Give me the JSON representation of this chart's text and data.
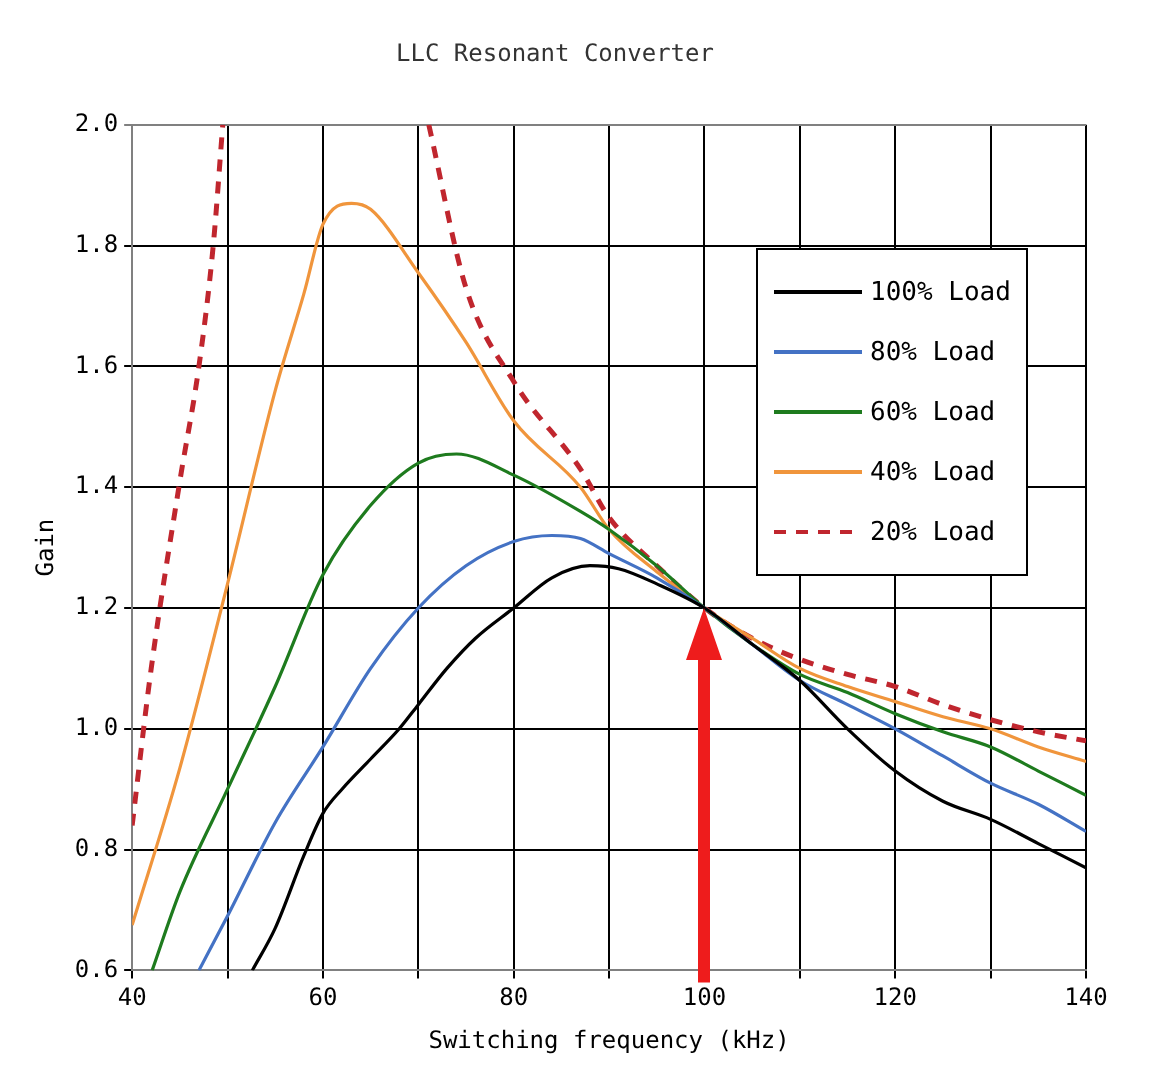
{
  "chart_data": {
    "type": "line",
    "title": "LLC Resonant Converter",
    "xlabel": "Switching frequency (kHz)",
    "ylabel": "Gain",
    "xlim": [
      40,
      140
    ],
    "ylim": [
      0.6,
      2.0
    ],
    "xticks": [
      40,
      {
        "value": 50,
        "label": null
      },
      60,
      {
        "value": 70,
        "label": null
      },
      80,
      {
        "value": 90,
        "label": null
      },
      100,
      {
        "value": 110,
        "label": null
      },
      120,
      {
        "value": 130,
        "label": null
      },
      140
    ],
    "yticks": [
      0.6,
      0.8,
      {
        "value": 1,
        "label": "1.0"
      },
      1.2,
      1.4,
      1.6,
      1.8,
      {
        "value": 2,
        "label": "2.0"
      }
    ],
    "grid": true,
    "legend": "top right",
    "series": [
      {
        "name": "100% Load",
        "color": "#000000",
        "x": [
          52.6,
          55,
          58,
          60,
          62,
          65,
          68,
          70,
          73,
          76,
          80,
          84,
          88,
          91,
          95,
          100,
          105,
          110,
          115,
          120,
          125,
          130,
          135,
          140
        ],
        "values": [
          0.6,
          0.67,
          0.79,
          0.86,
          0.9,
          0.95,
          1.0,
          1.04,
          1.1,
          1.15,
          1.2,
          1.25,
          1.27,
          1.265,
          1.24,
          1.2,
          1.14,
          1.08,
          1.0,
          0.93,
          0.88,
          0.85,
          0.81,
          0.77
        ]
      },
      {
        "name": "80% Load",
        "color": "#4472c4",
        "x": [
          47,
          50,
          55,
          60,
          65,
          70,
          75,
          80,
          84,
          87,
          90,
          95,
          100,
          105,
          110,
          115,
          120,
          125,
          130,
          135,
          140
        ],
        "values": [
          0.6,
          0.69,
          0.845,
          0.97,
          1.1,
          1.2,
          1.27,
          1.31,
          1.32,
          1.315,
          1.29,
          1.25,
          1.2,
          1.14,
          1.08,
          1.04,
          1.0,
          0.955,
          0.91,
          0.875,
          0.83
        ]
      },
      {
        "name": "60% Load",
        "color": "#1e7b1e",
        "x": [
          42.1,
          45,
          50,
          55,
          60,
          65,
          70,
          74,
          80,
          87,
          90,
          95,
          100,
          105,
          110,
          115,
          120,
          125,
          130,
          135,
          140
        ],
        "values": [
          0.6,
          0.73,
          0.9,
          1.07,
          1.255,
          1.37,
          1.44,
          1.455,
          1.42,
          1.36,
          1.33,
          1.27,
          1.2,
          1.14,
          1.09,
          1.06,
          1.025,
          0.995,
          0.97,
          0.93,
          0.89
        ]
      },
      {
        "name": "40% Load",
        "color": "#f0953c",
        "x": [
          40,
          45,
          50,
          55,
          58,
          60,
          63,
          65,
          70,
          75,
          80,
          87,
          90,
          95,
          100,
          105,
          110,
          115,
          120,
          125,
          130,
          135,
          140
        ],
        "values": [
          0.675,
          0.935,
          1.24,
          1.56,
          1.72,
          1.835,
          1.87,
          1.86,
          1.755,
          1.64,
          1.51,
          1.4,
          1.33,
          1.26,
          1.2,
          1.15,
          1.1,
          1.07,
          1.045,
          1.02,
          1.0,
          0.97,
          0.946
        ]
      },
      {
        "name": "20% Load",
        "color": "#c0262e",
        "line_style": "dashed",
        "x": [
          40,
          42,
          45,
          47,
          48.5,
          49.5,
          60,
          71.1,
          75,
          80,
          87,
          90,
          95,
          100,
          105,
          110,
          115,
          120,
          125,
          130,
          135,
          140
        ],
        "values": [
          0.84,
          1.1,
          1.41,
          1.6,
          1.8,
          2.0,
          null,
          2.0,
          1.73,
          1.575,
          1.43,
          1.35,
          1.27,
          1.2,
          1.15,
          1.115,
          1.09,
          1.07,
          1.04,
          1.015,
          0.995,
          0.98
        ]
      }
    ]
  }
}
